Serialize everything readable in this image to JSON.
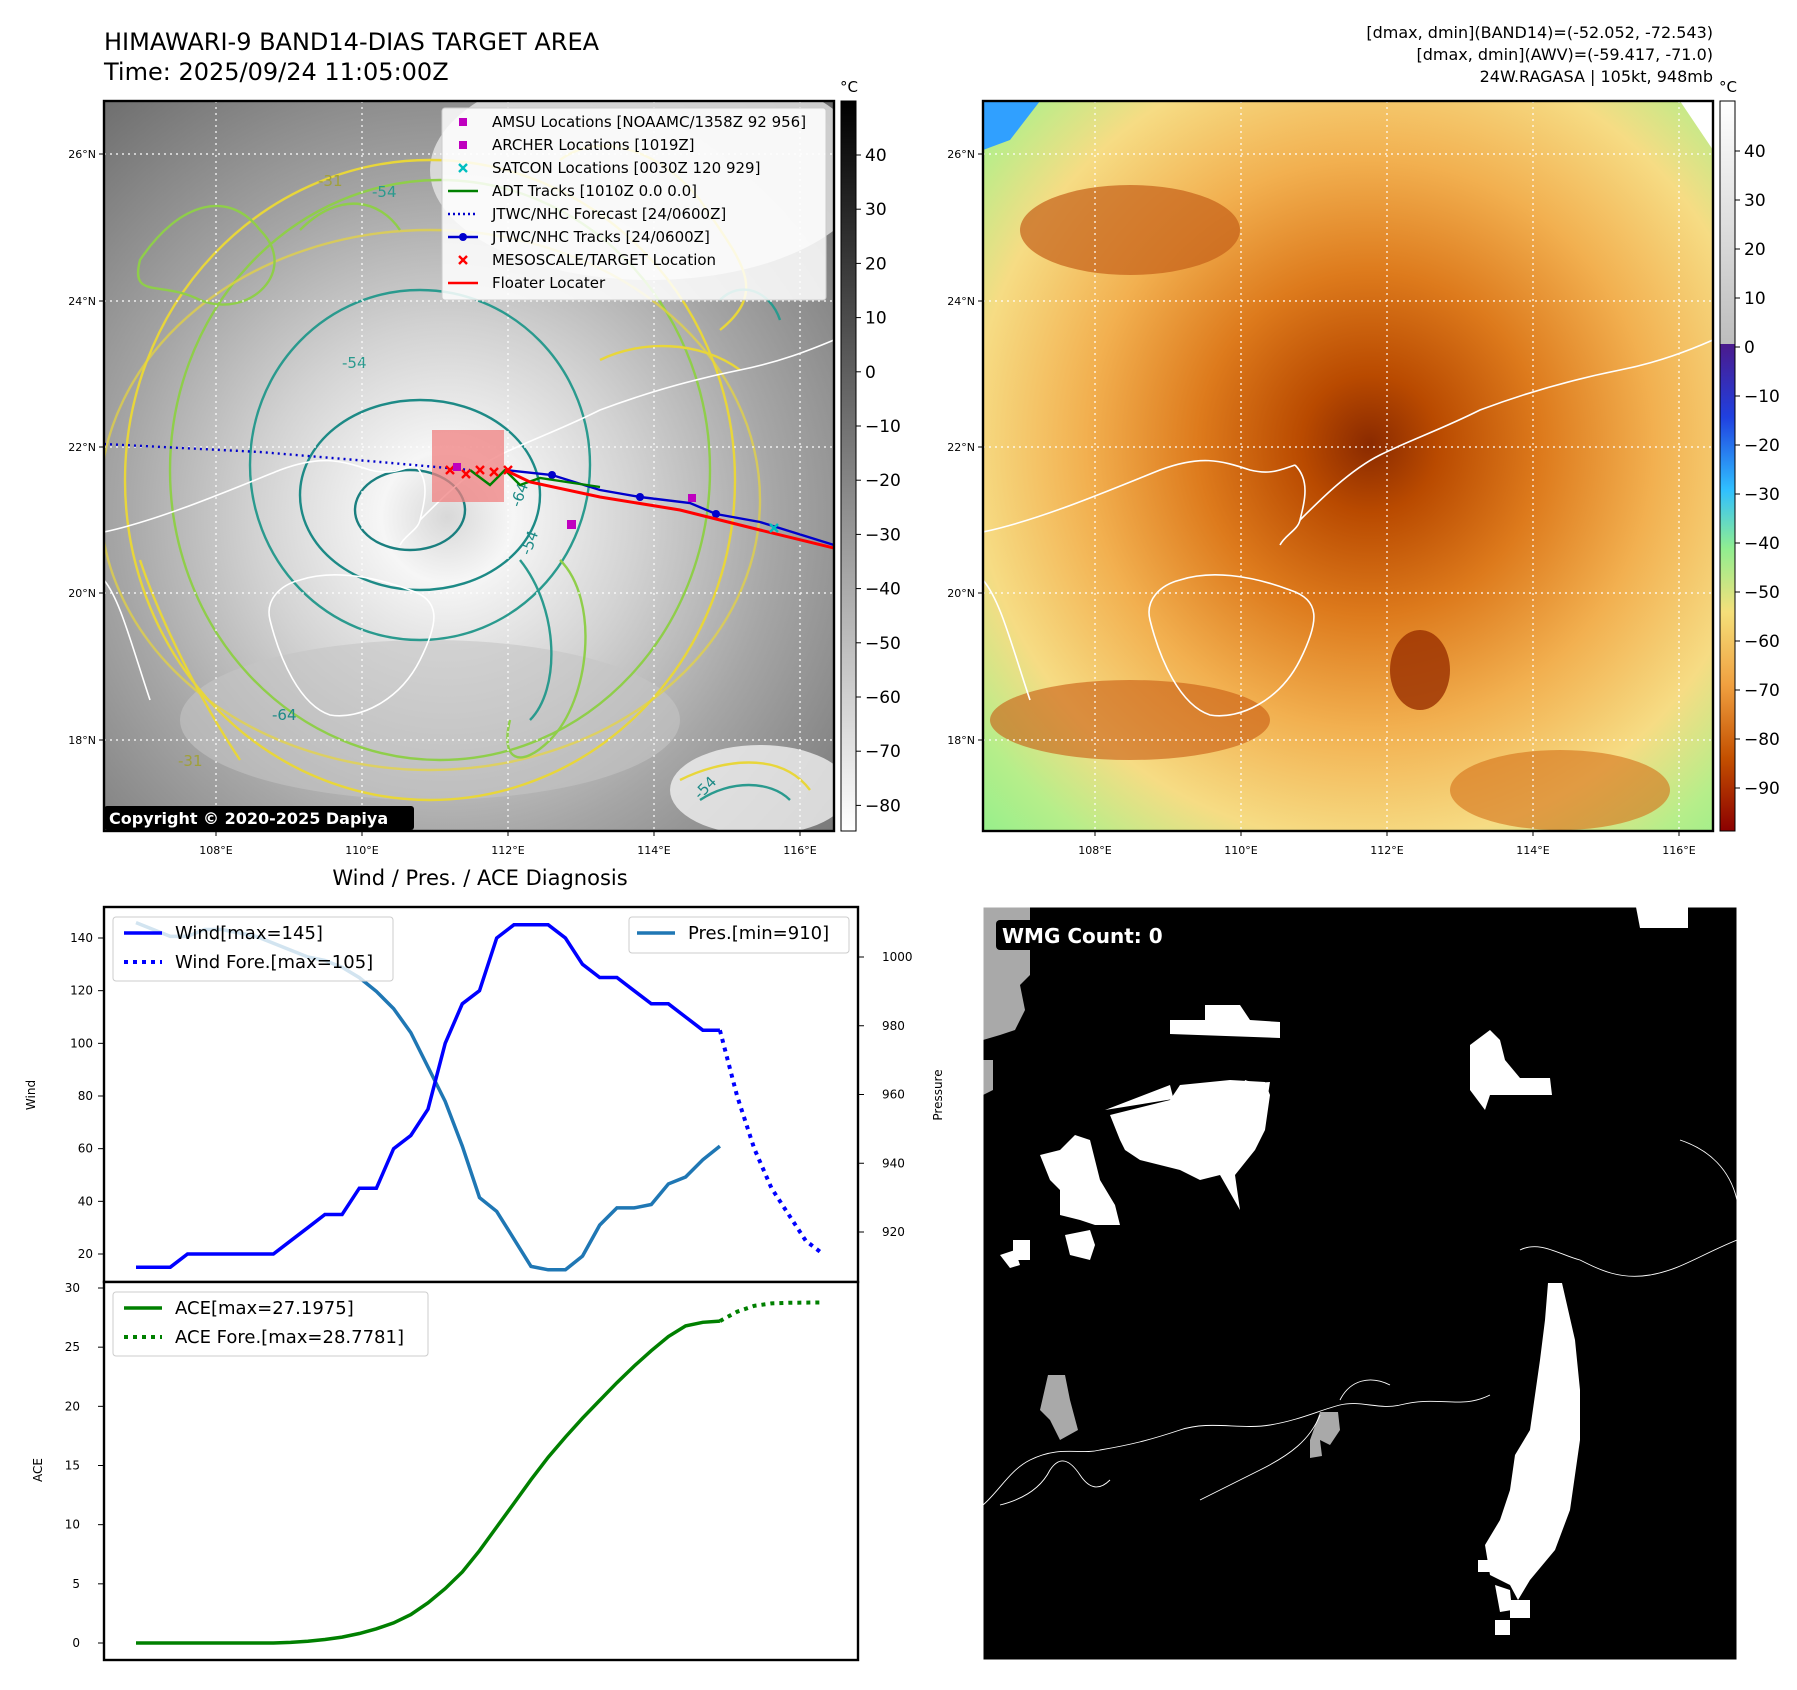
{
  "header": {
    "title_line1": "HIMAWARI-9 BAND14-DIAS TARGET AREA",
    "title_line2": "Time: 2025/09/24 11:05:00Z",
    "info_line1": "[dmax, dmin](BAND14)=(-52.052, -72.543)",
    "info_line2": "[dmax, dmin](AWV)=(-59.417, -71.0)",
    "info_line3": "24W.RAGASA | 105kt, 948mb"
  },
  "map_axes": {
    "lon_labels": [
      "108°E",
      "110°E",
      "112°E",
      "114°E",
      "116°E"
    ],
    "lat_labels": [
      "26°N",
      "24°N",
      "22°N",
      "20°N",
      "18°N"
    ]
  },
  "colors": {
    "wind": "#0000ff",
    "pressure": "#1f77b4",
    "ace": "#008000",
    "track": "#ff0000",
    "jtwc": "#0000cc",
    "adt": "#008000",
    "amsu": "#bf00bf",
    "satcon": "#00bfbf"
  },
  "ir_panel": {
    "colorbar_unit": "°C",
    "colorbar_ticks": [
      "40",
      "30",
      "20",
      "10",
      "0",
      "−10",
      "−20",
      "−30",
      "−40",
      "−50",
      "−60",
      "−70",
      "−80"
    ],
    "copyright": "Copyright © 2020-2025 Dapiya",
    "contour_labels": [
      "-54",
      "-54",
      "-64",
      "-54",
      "-31",
      "-31",
      "-64",
      "-54"
    ],
    "legend": [
      {
        "label": "AMSU Locations [NOAAMC/1358Z 92 956]",
        "marker": "square",
        "color": "#bf00bf"
      },
      {
        "label": "ARCHER Locations [1019Z]",
        "marker": "square",
        "color": "#bf00bf"
      },
      {
        "label": "SATCON Locations [0030Z 120 929]",
        "marker": "x",
        "color": "#00bfbf"
      },
      {
        "label": "ADT Tracks [1010Z 0.0 0.0]",
        "marker": "line",
        "color": "#008000"
      },
      {
        "label": "JTWC/NHC Forecast [24/0600Z]",
        "marker": "dotted",
        "color": "#0000cc"
      },
      {
        "label": "JTWC/NHC Tracks [24/0600Z]",
        "marker": "line-dot",
        "color": "#0000cc"
      },
      {
        "label": "MESOSCALE/TARGET Location",
        "marker": "x",
        "color": "#ff0000"
      },
      {
        "label": "Floater Locater",
        "marker": "line",
        "color": "#ff0000"
      }
    ]
  },
  "awv_panel": {
    "colorbar_unit": "°C",
    "colorbar_ticks": [
      "40",
      "30",
      "20",
      "10",
      "0",
      "−10",
      "−20",
      "−30",
      "−40",
      "−50",
      "−60",
      "−70",
      "−80",
      "−90"
    ]
  },
  "wmg_panel": {
    "label": "WMG Count: 0"
  },
  "diag": {
    "title": "Wind / Pres. / ACE Diagnosis",
    "wind_ylabel": "Wind",
    "pres_ylabel": "Pressure",
    "ace_ylabel": "ACE",
    "wind_ticks": [
      "20",
      "40",
      "60",
      "80",
      "100",
      "120",
      "140"
    ],
    "pres_ticks": [
      "920",
      "940",
      "960",
      "980",
      "1000"
    ],
    "ace_ticks": [
      "0",
      "5",
      "10",
      "15",
      "20",
      "25",
      "30"
    ],
    "legend_wind": "Wind[max=145]",
    "legend_wind_fore": "Wind Fore.[max=105]",
    "legend_pres": "Pres.[min=910]",
    "legend_ace": "ACE[max=27.1975]",
    "legend_ace_fore": "ACE Fore.[max=28.7781]"
  },
  "chart_data": [
    {
      "type": "line",
      "title": "Wind / Pres. / ACE Diagnosis",
      "ylabel": "Wind",
      "ylim": [
        15,
        150
      ],
      "x": [
        0,
        1,
        2,
        3,
        4,
        5,
        6,
        7,
        8,
        9,
        10,
        11,
        12,
        13,
        14,
        15,
        16,
        17,
        18,
        19,
        20,
        21,
        22,
        23,
        24,
        25,
        26,
        27,
        28,
        29,
        30,
        31,
        32,
        33,
        34,
        35,
        36,
        37,
        38,
        39,
        40
      ],
      "series": [
        {
          "name": "Wind[max=145]",
          "style": "solid",
          "x": [
            0,
            1,
            2,
            3,
            4,
            5,
            6,
            7,
            8,
            9,
            10,
            11,
            12,
            13,
            14,
            15,
            16,
            17,
            18,
            19,
            20,
            21,
            22,
            23,
            24,
            25,
            26,
            27,
            28,
            29,
            30,
            31,
            32,
            33,
            34
          ],
          "values": [
            15,
            15,
            15,
            20,
            20,
            20,
            20,
            20,
            20,
            25,
            30,
            35,
            35,
            45,
            45,
            60,
            65,
            75,
            100,
            115,
            120,
            140,
            145,
            145,
            145,
            140,
            130,
            125,
            125,
            120,
            115,
            115,
            110,
            105,
            105
          ]
        },
        {
          "name": "Wind Fore.[max=105]",
          "style": "dotted",
          "x": [
            34,
            35,
            36,
            37,
            38,
            39,
            40
          ],
          "values": [
            105,
            80,
            60,
            45,
            35,
            25,
            20
          ]
        }
      ]
    },
    {
      "type": "line",
      "ylabel": "Pressure",
      "ylim": [
        905,
        1010
      ],
      "series": [
        {
          "name": "Pres.[min=910]",
          "style": "solid",
          "x": [
            0,
            1,
            2,
            3,
            4,
            5,
            6,
            7,
            8,
            9,
            10,
            11,
            12,
            13,
            14,
            15,
            16,
            17,
            18,
            19,
            20,
            21,
            22,
            23,
            24,
            25,
            26,
            27,
            28,
            29,
            30,
            31,
            32,
            33,
            34
          ],
          "values": [
            1010,
            1008,
            1006,
            1006,
            1008,
            1008,
            1007,
            1006,
            1004,
            1002,
            1000,
            999,
            997,
            994,
            990,
            985,
            978,
            968,
            958,
            945,
            930,
            926,
            918,
            910,
            909,
            909,
            913,
            922,
            927,
            927,
            928,
            934,
            936,
            941,
            945
          ]
        }
      ]
    },
    {
      "type": "line",
      "ylabel": "ACE",
      "ylim": [
        -1,
        30
      ],
      "series": [
        {
          "name": "ACE[max=27.1975]",
          "style": "solid",
          "x": [
            0,
            2,
            4,
            6,
            8,
            9,
            10,
            11,
            12,
            13,
            14,
            15,
            16,
            17,
            18,
            19,
            20,
            21,
            22,
            23,
            24,
            25,
            26,
            27,
            28,
            29,
            30,
            31,
            32,
            33,
            34
          ],
          "values": [
            0,
            0,
            0,
            0,
            0,
            0.05,
            0.15,
            0.3,
            0.5,
            0.8,
            1.2,
            1.7,
            2.4,
            3.4,
            4.6,
            6.0,
            7.8,
            9.8,
            11.8,
            13.8,
            15.7,
            17.4,
            19.0,
            20.5,
            22.0,
            23.4,
            24.7,
            25.9,
            26.8,
            27.1,
            27.2
          ]
        },
        {
          "name": "ACE Fore.[max=28.7781]",
          "style": "dotted",
          "x": [
            34,
            35,
            36,
            37,
            38,
            39,
            40
          ],
          "values": [
            27.2,
            28.0,
            28.5,
            28.7,
            28.75,
            28.77,
            28.78
          ]
        }
      ]
    }
  ]
}
